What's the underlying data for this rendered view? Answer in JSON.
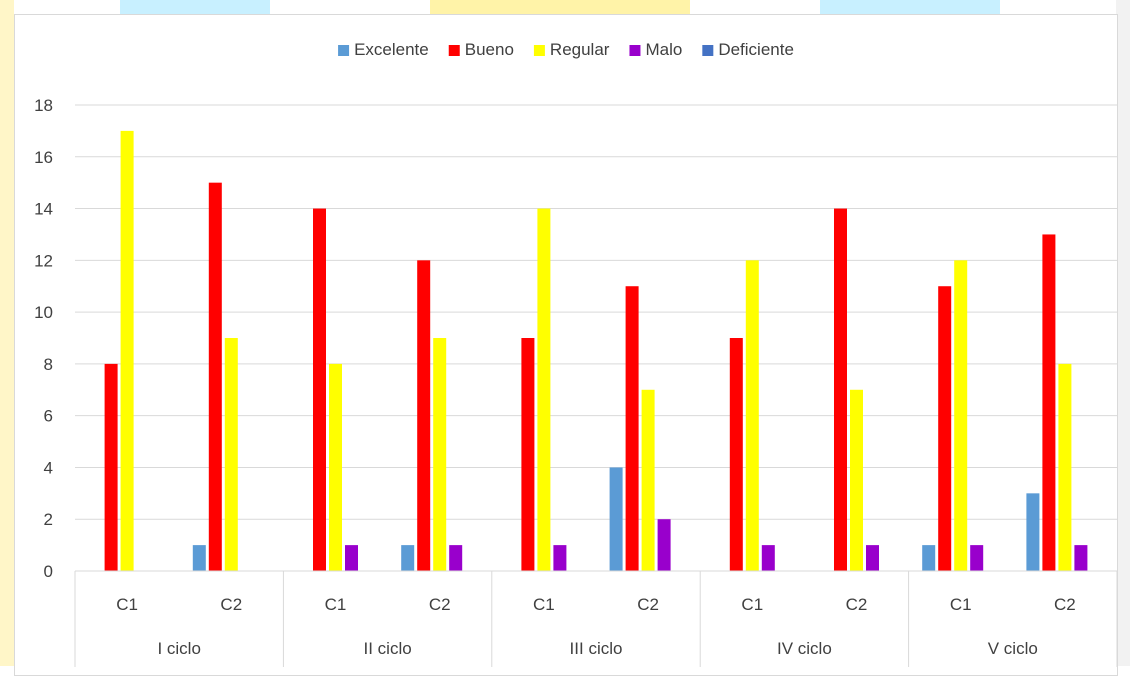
{
  "chart_data": {
    "type": "bar",
    "title": "",
    "xlabel": "",
    "ylabel": "",
    "ylim": [
      0,
      18
    ],
    "yticks": [
      0,
      2,
      4,
      6,
      8,
      10,
      12,
      14,
      16,
      18
    ],
    "grid": true,
    "legend_position": "top",
    "groups": [
      "I ciclo",
      "II ciclo",
      "III ciclo",
      "IV ciclo",
      "V ciclo"
    ],
    "categories": [
      "C1",
      "C2",
      "C1",
      "C2",
      "C1",
      "C2",
      "C1",
      "C2",
      "C1",
      "C2"
    ],
    "series": [
      {
        "name": "Excelente",
        "color": "#5b9bd5",
        "values": [
          0,
          1,
          0,
          1,
          0,
          4,
          0,
          0,
          1,
          3
        ]
      },
      {
        "name": "Bueno",
        "color": "#ff0000",
        "values": [
          8,
          15,
          14,
          12,
          9,
          11,
          9,
          14,
          11,
          13
        ]
      },
      {
        "name": "Regular",
        "color": "#ffff00",
        "values": [
          17,
          9,
          8,
          9,
          14,
          7,
          12,
          7,
          12,
          8
        ]
      },
      {
        "name": "Malo",
        "color": "#9900cc",
        "values": [
          0,
          0,
          1,
          1,
          1,
          2,
          1,
          1,
          1,
          1
        ]
      },
      {
        "name": "Deficiente",
        "color": "#4472c4",
        "values": [
          0,
          0,
          0,
          0,
          0,
          0,
          0,
          0,
          0,
          0
        ]
      }
    ]
  }
}
